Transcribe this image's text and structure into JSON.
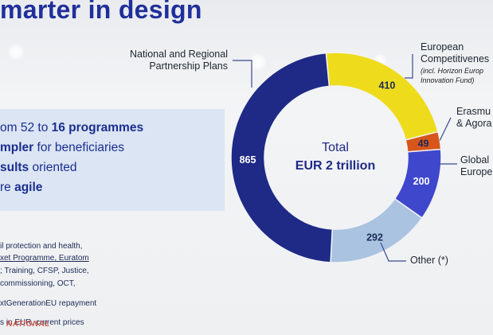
{
  "page": {
    "title": "marter in design",
    "bullets": [
      {
        "pre": "om 52 to ",
        "strong": "16 programmes",
        "post": ""
      },
      {
        "pre": "",
        "strong": "mpler",
        "post": " for beneficiaries"
      },
      {
        "pre": "",
        "strong": "sults",
        "post": " oriented"
      },
      {
        "pre": "re ",
        "strong": "agile",
        "post": ""
      }
    ],
    "notes": [
      "il protection and health,",
      "xet Programme, Euratom",
      "; Training, CFSP, Justice,",
      "commissioning, OCT,",
      "xtGenerationEU repayment",
      "s in EUR, current prices"
    ],
    "watermark": "NATIONAL",
    "colors": {
      "title": "#1f2f9a",
      "navy": "#1e2a86",
      "yellow": "#eedc1c",
      "orange": "#d7561b",
      "blue": "#3f47cd",
      "lightblue": "#a9c3e1",
      "panel": "#dbe5f4"
    }
  },
  "chart_data": {
    "type": "pie",
    "style": "donut",
    "center_label": "Total",
    "center_value": "EUR 2 trillion",
    "slices": [
      {
        "name": "National and Regional Partnership Plans",
        "value": 865,
        "color": "#1e2a86"
      },
      {
        "name": "European Competitiveness",
        "note": "(incl. Horizon Europe, Innovation Fund)",
        "value": 410,
        "color": "#eedc1c"
      },
      {
        "name": "Erasmus & Agora",
        "value": 49,
        "color": "#d7561b"
      },
      {
        "name": "Global Europe",
        "value": 200,
        "color": "#3f47cd"
      },
      {
        "name": "Other (*)",
        "value": 292,
        "color": "#a9c3e1"
      }
    ],
    "labels": {
      "national": [
        "National and Regional",
        "Partnership Plans"
      ],
      "competitiveness": [
        "European",
        "Competitivenes"
      ],
      "competitiveness_note": [
        "(incl. Horizon Europ",
        "Innovation Fund)"
      ],
      "erasmus": [
        "Erasmu",
        "& Agora"
      ],
      "global": [
        "Global",
        "Europe"
      ],
      "other": "Other (*)"
    }
  }
}
